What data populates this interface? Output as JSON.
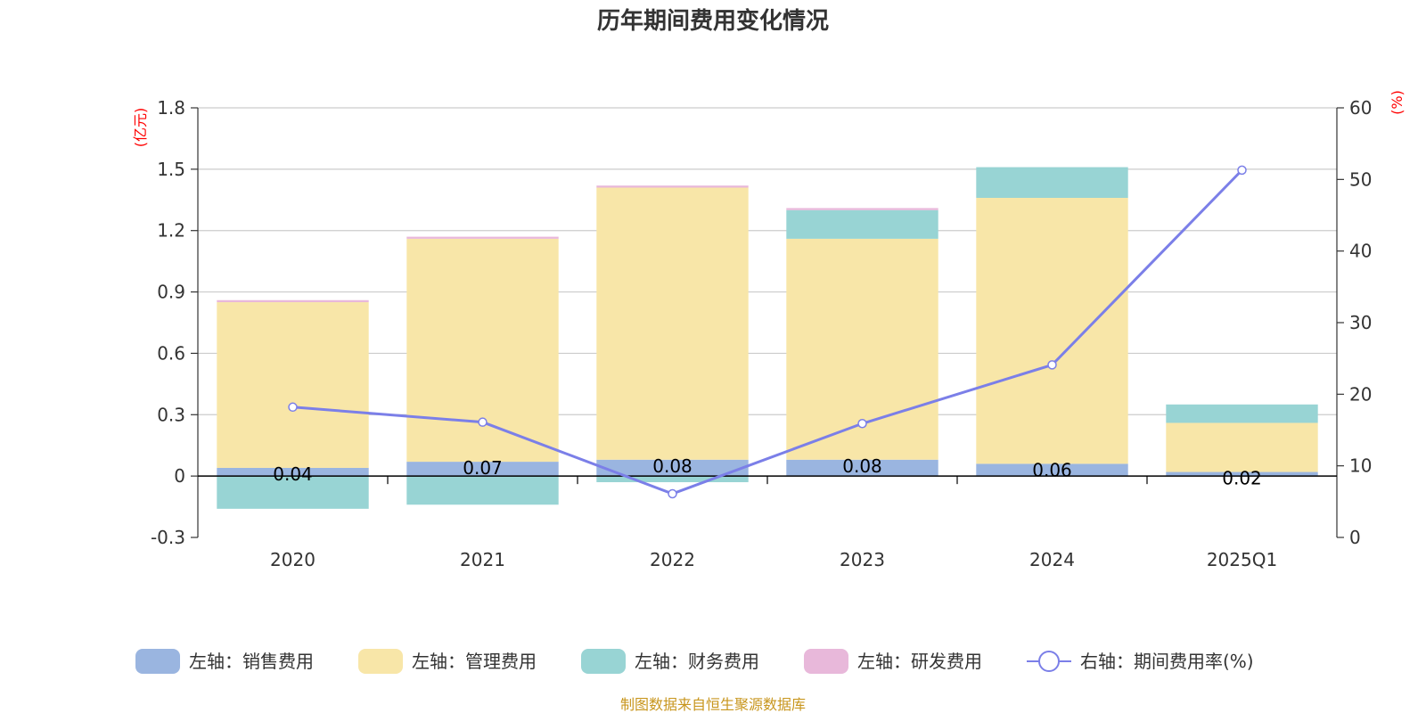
{
  "chart_data": {
    "type": "bar",
    "title": "历年期间费用变化情况",
    "categories": [
      "2020",
      "2021",
      "2022",
      "2023",
      "2024",
      "2025Q1"
    ],
    "left_axis": {
      "unit": "(亿元)",
      "ylim": [
        -0.3,
        1.8
      ],
      "ticks": [
        "-0.3",
        "0",
        "0.3",
        "0.6",
        "0.9",
        "1.2",
        "1.5",
        "1.8"
      ]
    },
    "right_axis": {
      "unit": "(%)",
      "ylim": [
        0,
        60
      ],
      "ticks": [
        "0",
        "10",
        "20",
        "30",
        "40",
        "50",
        "60"
      ]
    },
    "series": [
      {
        "name": "左轴：销售费用",
        "type": "bar",
        "color": "#9ab5e0",
        "values": [
          0.04,
          0.07,
          0.08,
          0.08,
          0.06,
          0.02
        ],
        "labels": [
          "0.04",
          "0.07",
          "0.08",
          "0.08",
          "0.06",
          "0.02"
        ]
      },
      {
        "name": "左轴：管理费用",
        "type": "bar",
        "color": "#f8e6a8",
        "values": [
          0.81,
          1.09,
          1.33,
          1.08,
          1.3,
          0.24
        ]
      },
      {
        "name": "左轴：财务费用",
        "type": "bar",
        "color": "#98d4d4",
        "values": [
          -0.16,
          -0.14,
          -0.03,
          0.14,
          0.15,
          0.09
        ]
      },
      {
        "name": "左轴：研发费用",
        "type": "bar",
        "color": "#e8b8da",
        "values": [
          0.01,
          0.01,
          0.01,
          0.01,
          0.0,
          0.0
        ]
      },
      {
        "name": "右轴：期间费用率(%)",
        "type": "line",
        "axis": "right",
        "color": "#7b7fe8",
        "values": [
          18.2,
          16.1,
          6.1,
          15.9,
          24.1,
          51.3
        ]
      }
    ],
    "legend_position": "bottom",
    "grid": true
  },
  "source_text": "制图数据来自恒生聚源数据库"
}
